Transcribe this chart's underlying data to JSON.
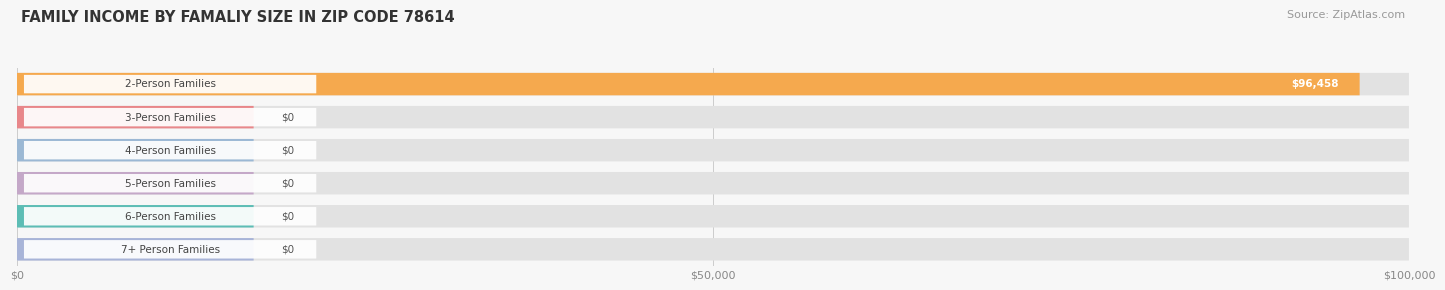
{
  "title": "FAMILY INCOME BY FAMALIY SIZE IN ZIP CODE 78614",
  "source": "Source: ZipAtlas.com",
  "categories": [
    "2-Person Families",
    "3-Person Families",
    "4-Person Families",
    "5-Person Families",
    "6-Person Families",
    "7+ Person Families"
  ],
  "values": [
    96458,
    0,
    0,
    0,
    0,
    0
  ],
  "bar_colors": [
    "#F5A94E",
    "#E8878A",
    "#9BB8D4",
    "#C4A8C8",
    "#5DBDB5",
    "#A8B4D8"
  ],
  "value_labels": [
    "$96,458",
    "$0",
    "$0",
    "$0",
    "$0",
    "$0"
  ],
  "xlim": [
    0,
    100000
  ],
  "xticks": [
    0,
    50000,
    100000
  ],
  "xticklabels": [
    "$0",
    "$50,000",
    "$100,000"
  ],
  "background_color": "#f7f7f7",
  "bar_bg_color": "#e2e2e2",
  "title_fontsize": 10.5,
  "source_fontsize": 8,
  "label_fontsize": 7.5,
  "value_fontsize": 7.5,
  "zero_stub_value": 17000
}
